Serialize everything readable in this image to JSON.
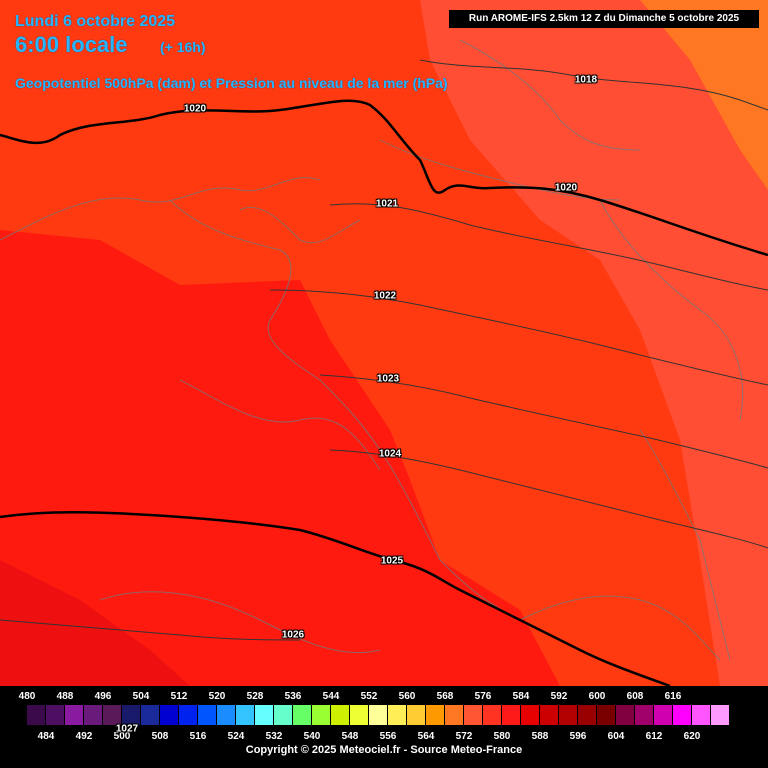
{
  "header": {
    "date": "Lundi 6 octobre 2025",
    "time": "6:00 locale",
    "lead": "(+ 16h)",
    "parameter": "Geopotentiel 500hPa (dam) et Pression au niveau de la mer (hPa)",
    "run_info": "Run AROME-IFS 2.5km 12 Z du Dimanche 5 octobre 2025"
  },
  "isobars": [
    {
      "name": "isobar-1018",
      "label": "1018"
    },
    {
      "name": "isobar-1020-west",
      "label": "1020"
    },
    {
      "name": "isobar-1020-east",
      "label": "1020"
    },
    {
      "name": "isobar-1021",
      "label": "1021"
    },
    {
      "name": "isobar-1022",
      "label": "1022"
    },
    {
      "name": "isobar-1023",
      "label": "1023"
    },
    {
      "name": "isobar-1024",
      "label": "1024"
    },
    {
      "name": "isobar-1025",
      "label": "1025"
    },
    {
      "name": "isobar-1026",
      "label": "1026"
    },
    {
      "name": "isobar-1027",
      "label": "1027"
    }
  ],
  "legend": {
    "top_ticks": [
      "480",
      "488",
      "496",
      "504",
      "512",
      "520",
      "528",
      "536",
      "544",
      "552",
      "560",
      "568",
      "576",
      "584",
      "592",
      "600",
      "608",
      "616"
    ],
    "bottom_ticks": [
      "484",
      "492",
      "500",
      "508",
      "516",
      "524",
      "532",
      "540",
      "548",
      "556",
      "564",
      "572",
      "580",
      "588",
      "596",
      "604",
      "612",
      "620"
    ],
    "colors": [
      "#3a0a4a",
      "#4e0f62",
      "#8a1ba0",
      "#6a1a7a",
      "#5a1a5a",
      "#1a1a6a",
      "#1a2a9a",
      "#0000d0",
      "#0022ee",
      "#0055ff",
      "#1a8cff",
      "#33c3ff",
      "#66ffff",
      "#66ffcc",
      "#66ff66",
      "#99ff33",
      "#ccf000",
      "#eeff33",
      "#ffff99",
      "#ffee55",
      "#ffcc33",
      "#ff9900",
      "#ff7722",
      "#ff5533",
      "#ff3322",
      "#ff1a1a",
      "#e60000",
      "#cc0000",
      "#b30000",
      "#990000",
      "#7a0000",
      "#800040",
      "#a0006a",
      "#d000b0",
      "#ff00ff",
      "#ff55ff",
      "#ff99ff"
    ]
  },
  "copyright": "Copyright © 2025 Meteociel.fr - Source Meteo-France"
}
